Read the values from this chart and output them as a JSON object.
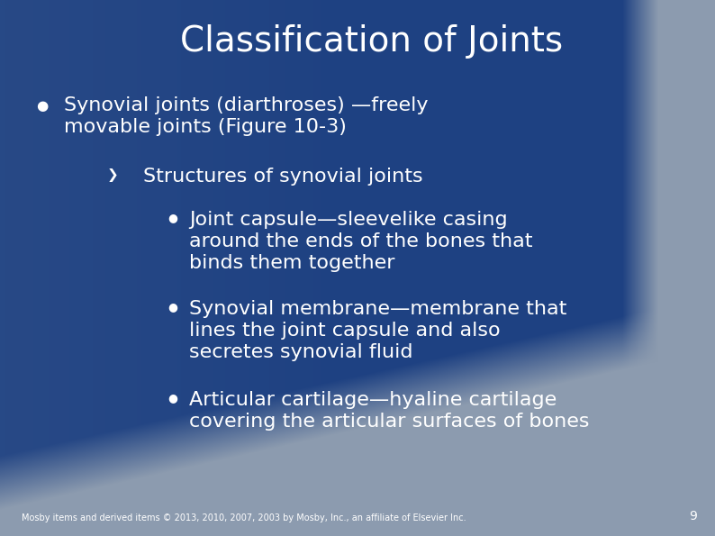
{
  "title": "Classification of Joints",
  "text_color": "#ffffff",
  "title_fontsize": 28,
  "body_fontsize": 16,
  "sub_fontsize": 16,
  "footer_fontsize": 7,
  "footer_text": "Mosby items and derived items © 2013, 2010, 2007, 2003 by Mosby, Inc., an affiliate of Elsevier Inc.",
  "page_number": "9",
  "bullet1_line1": "Synovial joints (diarthroses) —freely",
  "bullet1_line2": "movable joints (Figure 10-3)",
  "sub_bullet": "Structures of synovial joints",
  "item1_line1": "Joint capsule—sleevelike casing",
  "item1_line2": "around the ends of the bones that",
  "item1_line3": "binds them together",
  "item2_line1": "Synovial membrane—membrane that",
  "item2_line2": "lines the joint capsule and also",
  "item2_line3": "secretes synovial fluid",
  "item3_line1": "Articular cartilage—hyaline cartilage",
  "item3_line2": "covering the articular surfaces of bones",
  "bg_blue_dark": [
    30,
    65,
    130
  ],
  "bg_gray": [
    140,
    155,
    175
  ],
  "bg_blue_mid": [
    70,
    100,
    155
  ]
}
